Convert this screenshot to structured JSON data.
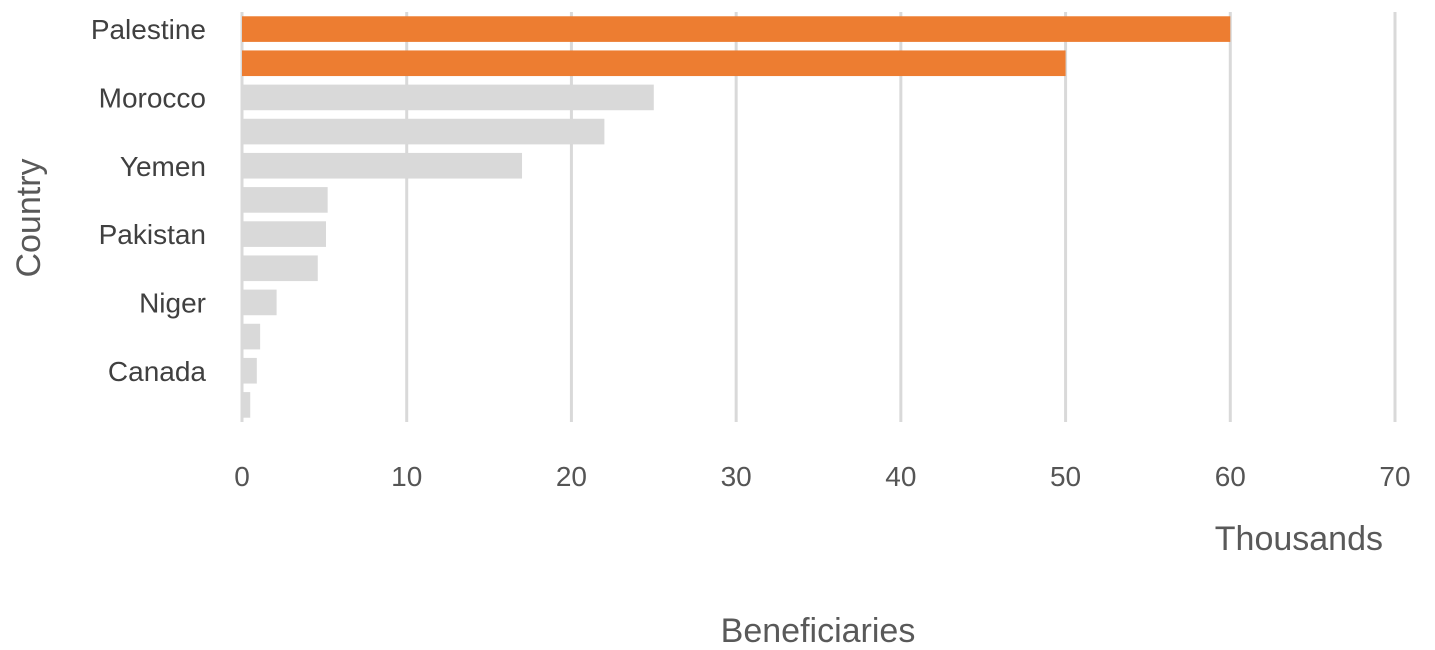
{
  "chart_data": {
    "type": "bar",
    "orientation": "horizontal",
    "categories": [
      "Palestine",
      "",
      "Morocco",
      "",
      "Yemen",
      "",
      "Pakistan",
      "",
      "Niger",
      "",
      "Canada",
      ""
    ],
    "values": [
      60,
      50,
      25,
      22,
      17,
      5.2,
      5.1,
      4.6,
      2.1,
      1.1,
      0.9,
      0.5
    ],
    "highlight": [
      true,
      true,
      false,
      false,
      false,
      false,
      false,
      false,
      false,
      false,
      false,
      false
    ],
    "colors": {
      "highlight": "#ED7D31",
      "default": "#D9D9D9",
      "grid": "#D9D9D9"
    },
    "xlim": [
      0,
      70
    ],
    "xticks": [
      "0",
      "10",
      "20",
      "30",
      "40",
      "50",
      "60",
      "70"
    ],
    "display_units": "Thousands",
    "xlabel": "Beneficiaries",
    "ylabel": "Country",
    "grid": "vertical",
    "legend": "none"
  }
}
